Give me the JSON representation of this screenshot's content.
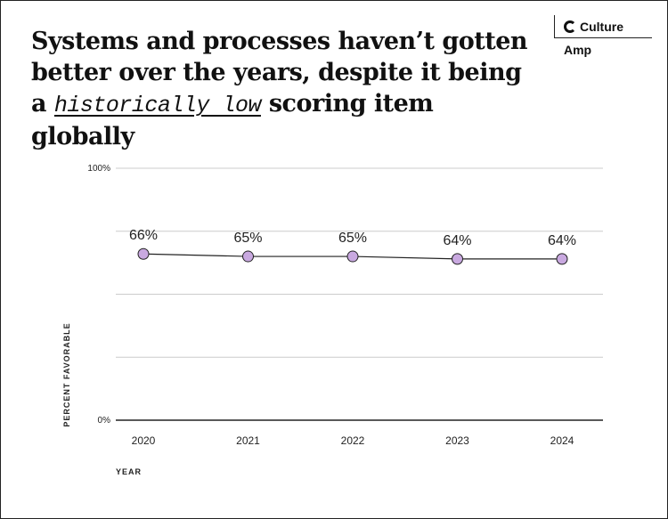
{
  "brand": "Culture Amp",
  "chart_data": {
    "type": "line",
    "title": [
      "Systems and processes haven’t gotten better over the years, despite it being a ",
      "historically low",
      " scoring item globally"
    ],
    "y_label": "PERCENT FAVORABLE",
    "x_label": "YEAR",
    "categories": [
      "2020",
      "2021",
      "2022",
      "2023",
      "2024"
    ],
    "values": [
      66,
      65,
      65,
      64,
      64
    ],
    "value_labels": [
      "66%",
      "65%",
      "65%",
      "64%",
      "64%"
    ],
    "color": "#c9a9e0",
    "ylim": [
      0,
      100
    ],
    "yticks": [
      {
        "value": 0,
        "label": "0%"
      },
      {
        "value": 25,
        "label": null
      },
      {
        "value": 50,
        "label": null
      },
      {
        "value": 75,
        "label": null
      },
      {
        "value": 100,
        "label": "100%"
      }
    ],
    "grid": true
  }
}
